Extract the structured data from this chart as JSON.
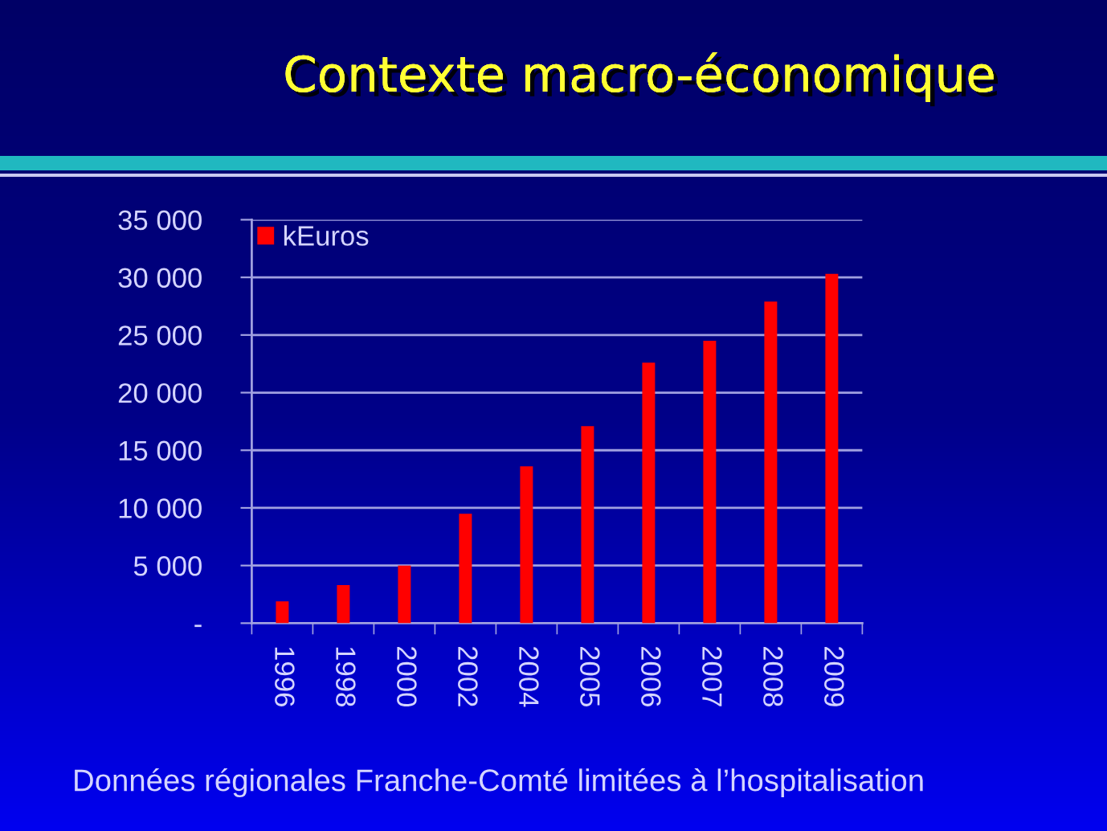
{
  "chart_data": {
    "type": "bar",
    "title": "Contexte macro-économique",
    "categories": [
      "1996",
      "1998",
      "2000",
      "2002",
      "2004",
      "2005",
      "2006",
      "2007",
      "2008",
      "2009"
    ],
    "series": [
      {
        "name": "kEuros",
        "color": "#ff0000",
        "values": [
          1900,
          3300,
          5000,
          9500,
          13600,
          17100,
          22600,
          24500,
          27900,
          30300
        ]
      }
    ],
    "ylim": [
      0,
      35000
    ],
    "yticks": [
      {
        "value": 0,
        "label": "-"
      },
      {
        "value": 5000,
        "label": "5 000"
      },
      {
        "value": 10000,
        "label": "10 000"
      },
      {
        "value": 15000,
        "label": "15 000"
      },
      {
        "value": 20000,
        "label": "20 000"
      },
      {
        "value": 25000,
        "label": "25 000"
      },
      {
        "value": 30000,
        "label": "30 000"
      },
      {
        "value": 35000,
        "label": "35 000"
      }
    ],
    "grid": "y",
    "legend": "top left",
    "annotations": [
      "Données régionales Franche-Comté limitées à l’hospitalisation"
    ]
  }
}
